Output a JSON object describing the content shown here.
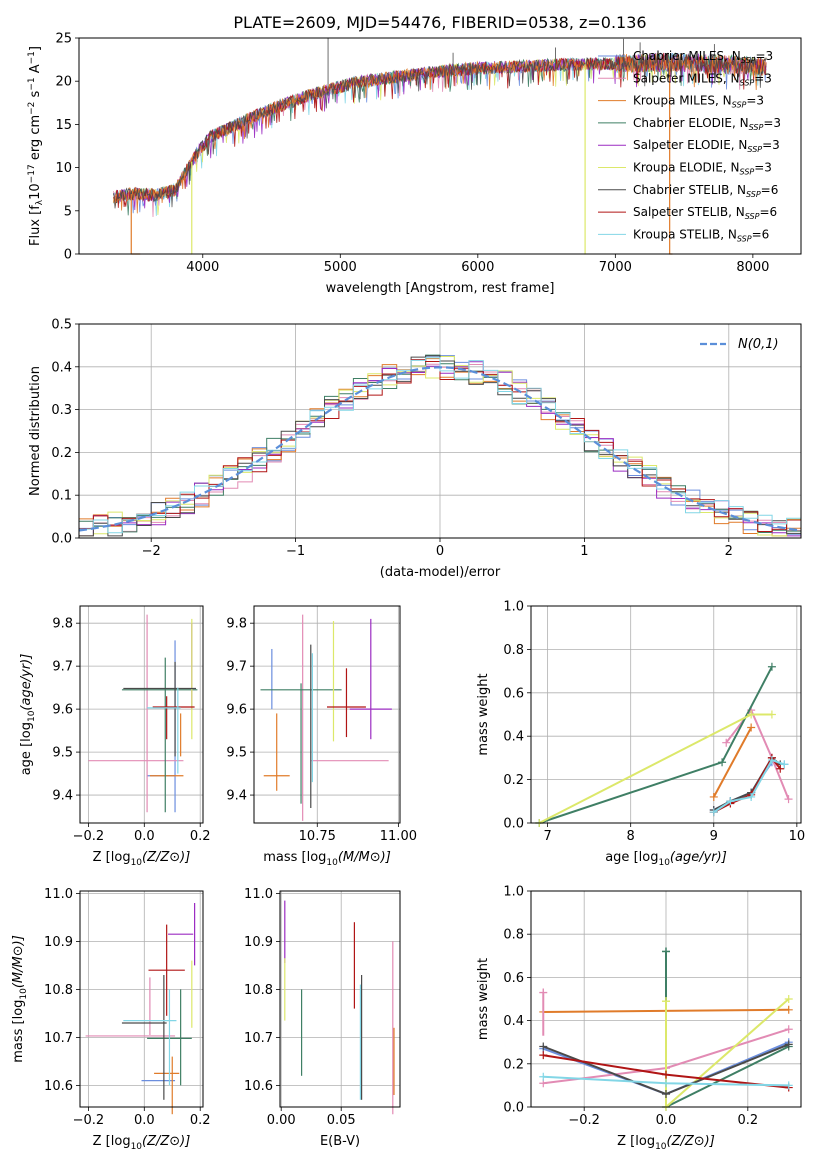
{
  "figure_title": "PLATE=2609, MJD=54476, FIBERID=0538, z=0.136",
  "series_colors": [
    "#6b8ede",
    "#e28bb4",
    "#e07b2a",
    "#3f7f65",
    "#9b2cc2",
    "#dce86a",
    "#4a4a4a",
    "#b01515",
    "#82d6e6"
  ],
  "chart_data": [
    {
      "id": "spectrum",
      "type": "line",
      "xlabel": "wavelength [Angstrom, rest frame]",
      "ylabel": "Flux [f_λ10^-17 erg cm^-2 s^-1 A^-1]",
      "xlim": [
        3100,
        8350
      ],
      "ylim": [
        0,
        25
      ],
      "xticks": [
        4000,
        5000,
        6000,
        7000,
        8000
      ],
      "yticks": [
        0,
        5,
        10,
        15,
        20,
        25
      ],
      "grid": false,
      "legend_position": "top-right",
      "legend": [
        "Chabrier MILES, N_SSP=3",
        "Salpeter MILES, N_SSP=3",
        "Kroupa MILES, N_SSP=3",
        "Chabrier ELODIE, N_SSP=3",
        "Salpeter ELODIE, N_SSP=3",
        "Kroupa ELODIE, N_SSP=3",
        "Chabrier STELIB, N_SSP=6",
        "Salpeter STELIB, N_SSP=6",
        "Kroupa STELIB, N_SSP=6"
      ],
      "continuum": {
        "x": [
          3350,
          3500,
          3650,
          3800,
          3950,
          4050,
          4250,
          4500,
          4800,
          5100,
          5400,
          5700,
          6000,
          6300,
          6600,
          6900,
          7200,
          7400,
          7600,
          7800,
          8000,
          8100
        ],
        "y": [
          6.6,
          7.0,
          6.8,
          7.4,
          11.5,
          13.5,
          15.0,
          16.8,
          18.5,
          19.8,
          20.5,
          21.1,
          21.5,
          21.7,
          21.9,
          22.0,
          22.1,
          22.2,
          22.1,
          21.9,
          21.8,
          21.7
        ]
      },
      "emission_lines": [
        {
          "x": 4911,
          "y": 25
        },
        {
          "x": 5820,
          "y": 23.3
        },
        {
          "x": 6565,
          "y": 23.9
        },
        {
          "x": 7060,
          "y": 24.9
        },
        {
          "x": 7180,
          "y": 24.5
        },
        {
          "x": 7720,
          "y": 24.3
        }
      ],
      "drop_segments": [
        {
          "x_start": 3480,
          "x_end": 3545,
          "color_index": 2
        },
        {
          "x_start": 3920,
          "x_end": 3922,
          "color_index": 5
        },
        {
          "x_start": 6780,
          "x_end": 6782,
          "color_index": 5
        },
        {
          "x_start": 7395,
          "x_end": 7415,
          "color_index": 2
        }
      ]
    },
    {
      "id": "residuals",
      "type": "step",
      "xlabel": "(data-model)/error",
      "ylabel": "Normed distribution",
      "xlim": [
        -2.5,
        2.5
      ],
      "ylim": [
        0,
        0.5
      ],
      "xticks": [
        -2,
        -1,
        0,
        1,
        2
      ],
      "yticks": [
        0,
        0.1,
        0.2,
        0.3,
        0.4,
        0.5
      ],
      "grid": true,
      "legend_position": "top-right",
      "reference": {
        "name": "N(0,1)",
        "color": "#5b8fd9"
      }
    },
    {
      "id": "age_vs_Z",
      "type": "errorbar",
      "xlabel": "Z [log10(Z/Z⊙)]",
      "ylabel": "age [log10(age/yr)]",
      "xlim": [
        -0.23,
        0.21
      ],
      "ylim": [
        9.335,
        9.84
      ],
      "xticks": [
        -0.2,
        0.0,
        0.2
      ],
      "yticks": [
        9.4,
        9.5,
        9.6,
        9.7,
        9.8
      ],
      "grid": true,
      "points": [
        {
          "x": 0.06,
          "xerr": 0.05,
          "y": 9.445,
          "yerr": 0.0,
          "color_index": 0
        },
        {
          "x": 0.11,
          "xerr": 0.0,
          "y": 9.56,
          "yerr": 0.2,
          "color_index": 0
        },
        {
          "x": -0.03,
          "xerr": 0.17,
          "y": 9.48,
          "yerr": 0.0,
          "color_index": 1
        },
        {
          "x": 0.01,
          "xerr": 0.0,
          "y": 9.59,
          "yerr": 0.23,
          "color_index": 1
        },
        {
          "x": 0.08,
          "xerr": 0.06,
          "y": 9.445,
          "yerr": 0.0,
          "color_index": 2
        },
        {
          "x": 0.13,
          "xerr": 0.0,
          "y": 9.54,
          "yerr": 0.05,
          "color_index": 2
        },
        {
          "x": 0.055,
          "xerr": 0.135,
          "y": 9.645,
          "yerr": 0.0,
          "color_index": 3
        },
        {
          "x": 0.075,
          "xerr": 0.0,
          "y": 9.54,
          "yerr": 0.18,
          "color_index": 3
        },
        {
          "x": 0.17,
          "xerr": 0.0,
          "y": 9.7,
          "yerr": 0.1,
          "color_index": 4
        },
        {
          "x": 0.17,
          "xerr": 0.0,
          "y": 9.67,
          "yerr": 0.14,
          "color_index": 5
        },
        {
          "x": 0.055,
          "xerr": 0.13,
          "y": 9.648,
          "yerr": 0.0,
          "color_index": 6
        },
        {
          "x": 0.11,
          "xerr": 0.0,
          "y": 9.6,
          "yerr": 0.11,
          "color_index": 6
        },
        {
          "x": 0.105,
          "xerr": 0.075,
          "y": 9.605,
          "yerr": 0.0,
          "color_index": 7
        },
        {
          "x": 0.08,
          "xerr": 0.0,
          "y": 9.58,
          "yerr": 0.05,
          "color_index": 7
        },
        {
          "x": 0.07,
          "xerr": 0.06,
          "y": 9.603,
          "yerr": 0.0,
          "color_index": 8
        },
        {
          "x": 0.12,
          "xerr": 0.0,
          "y": 9.55,
          "yerr": 0.1,
          "color_index": 8
        }
      ]
    },
    {
      "id": "age_vs_mass",
      "type": "errorbar",
      "xlabel": "mass [log10(M/M⊙)]",
      "ylabel": "",
      "xlim": [
        10.555,
        11.005
      ],
      "ylim": [
        9.335,
        9.84
      ],
      "xticks": [
        10.75,
        11.0
      ],
      "yticks": [
        9.4,
        9.5,
        9.6,
        9.7,
        9.8
      ],
      "grid": true,
      "points": [
        {
          "x": 10.61,
          "xerr": 0.0,
          "y": 9.67,
          "yerr": 0.07,
          "color_index": 0
        },
        {
          "x": 10.85,
          "xerr": 0.12,
          "y": 9.48,
          "yerr": 0.0,
          "color_index": 1
        },
        {
          "x": 10.705,
          "xerr": 0.0,
          "y": 9.58,
          "yerr": 0.24,
          "color_index": 1
        },
        {
          "x": 10.625,
          "xerr": 0.04,
          "y": 9.445,
          "yerr": 0.0,
          "color_index": 2
        },
        {
          "x": 10.625,
          "xerr": 0.0,
          "y": 9.5,
          "yerr": 0.09,
          "color_index": 2
        },
        {
          "x": 10.7,
          "xerr": 0.125,
          "y": 9.645,
          "yerr": 0.0,
          "color_index": 3
        },
        {
          "x": 10.7,
          "xerr": 0.0,
          "y": 9.52,
          "yerr": 0.14,
          "color_index": 3
        },
        {
          "x": 10.915,
          "xerr": 0.065,
          "y": 9.6,
          "yerr": 0.0,
          "color_index": 4
        },
        {
          "x": 10.915,
          "xerr": 0.0,
          "y": 9.67,
          "yerr": 0.14,
          "color_index": 4
        },
        {
          "x": 10.8,
          "xerr": 0.0,
          "y": 9.665,
          "yerr": 0.14,
          "color_index": 5
        },
        {
          "x": 10.73,
          "xerr": 0.0,
          "y": 9.56,
          "yerr": 0.19,
          "color_index": 6
        },
        {
          "x": 10.84,
          "xerr": 0.06,
          "y": 9.605,
          "yerr": 0.0,
          "color_index": 7
        },
        {
          "x": 10.84,
          "xerr": 0.0,
          "y": 9.615,
          "yerr": 0.08,
          "color_index": 7
        },
        {
          "x": 10.735,
          "xerr": 0.0,
          "y": 9.58,
          "yerr": 0.15,
          "color_index": 8
        }
      ]
    },
    {
      "id": "weight_vs_age",
      "type": "line",
      "xlabel": "age [log10(age/yr)]",
      "ylabel": "mass weight",
      "xlim": [
        6.8,
        10.05
      ],
      "ylim": [
        0,
        1.0
      ],
      "xticks": [
        7,
        8,
        9,
        10
      ],
      "yticks": [
        0.0,
        0.2,
        0.4,
        0.6,
        0.8,
        1.0
      ],
      "grid": true,
      "series": [
        {
          "color_index": 0,
          "x": [
            9.0,
            9.2,
            9.45,
            9.7,
            9.85
          ],
          "y": [
            0.06,
            0.1,
            0.14,
            0.28,
            0.27
          ]
        },
        {
          "color_index": 1,
          "x": [
            9.15,
            9.45,
            9.7,
            9.9
          ],
          "y": [
            0.37,
            0.52,
            0.3,
            0.11
          ]
        },
        {
          "color_index": 2,
          "x": [
            9.0,
            9.45
          ],
          "y": [
            0.12,
            0.44
          ]
        },
        {
          "color_index": 3,
          "x": [
            6.9,
            9.1,
            9.7
          ],
          "y": [
            0.0,
            0.28,
            0.72
          ]
        },
        {
          "color_index": 5,
          "x": [
            6.9,
            9.45,
            9.7
          ],
          "y": [
            0.0,
            0.5,
            0.5
          ]
        },
        {
          "color_index": 6,
          "x": [
            9.0,
            9.2,
            9.45,
            9.7,
            9.8
          ],
          "y": [
            0.06,
            0.1,
            0.14,
            0.3,
            0.27
          ]
        },
        {
          "color_index": 7,
          "x": [
            9.0,
            9.2,
            9.45,
            9.7,
            9.8
          ],
          "y": [
            0.05,
            0.09,
            0.13,
            0.3,
            0.25
          ]
        },
        {
          "color_index": 8,
          "x": [
            9.0,
            9.2,
            9.45,
            9.7,
            9.85
          ],
          "y": [
            0.05,
            0.1,
            0.12,
            0.29,
            0.27
          ]
        }
      ]
    },
    {
      "id": "mass_vs_Z",
      "type": "errorbar",
      "xlabel": "Z [log10(Z/Z⊙)]",
      "ylabel": "mass [log10(M/M⊙)]",
      "xlim": [
        -0.23,
        0.21
      ],
      "ylim": [
        10.555,
        11.005
      ],
      "xticks": [
        -0.2,
        0.0,
        0.2
      ],
      "yticks": [
        10.6,
        10.7,
        10.8,
        10.9,
        11.0
      ],
      "grid": true,
      "points": [
        {
          "x": 0.05,
          "xerr": 0.06,
          "y": 10.61,
          "yerr": 0.0,
          "color_index": 0
        },
        {
          "x": -0.05,
          "xerr": 0.16,
          "y": 10.703,
          "yerr": 0.0,
          "color_index": 1
        },
        {
          "x": 0.02,
          "xerr": 0.0,
          "y": 10.765,
          "yerr": 0.06,
          "color_index": 1
        },
        {
          "x": 0.08,
          "xerr": 0.045,
          "y": 10.625,
          "yerr": 0.0,
          "color_index": 2
        },
        {
          "x": 0.1,
          "xerr": 0.0,
          "y": 10.6,
          "yerr": 0.06,
          "color_index": 2
        },
        {
          "x": 0.09,
          "xerr": 0.08,
          "y": 10.698,
          "yerr": 0.0,
          "color_index": 3
        },
        {
          "x": 0.13,
          "xerr": 0.0,
          "y": 10.7,
          "yerr": 0.1,
          "color_index": 3
        },
        {
          "x": 0.13,
          "xerr": 0.045,
          "y": 10.915,
          "yerr": 0.0,
          "color_index": 4
        },
        {
          "x": 0.18,
          "xerr": 0.0,
          "y": 10.915,
          "yerr": 0.065,
          "color_index": 4
        },
        {
          "x": 0.17,
          "xerr": 0.0,
          "y": 10.79,
          "yerr": 0.07,
          "color_index": 5
        },
        {
          "x": 0.0,
          "xerr": 0.08,
          "y": 10.73,
          "yerr": 0.0,
          "color_index": 6
        },
        {
          "x": 0.07,
          "xerr": 0.0,
          "y": 10.7,
          "yerr": 0.13,
          "color_index": 6
        },
        {
          "x": 0.08,
          "xerr": 0.065,
          "y": 10.84,
          "yerr": 0.0,
          "color_index": 7
        },
        {
          "x": 0.08,
          "xerr": 0.0,
          "y": 10.84,
          "yerr": 0.095,
          "color_index": 7
        },
        {
          "x": 0.02,
          "xerr": 0.095,
          "y": 10.735,
          "yerr": 0.0,
          "color_index": 8
        },
        {
          "x": 0.09,
          "xerr": 0.0,
          "y": 10.7,
          "yerr": 0.1,
          "color_index": 8
        }
      ]
    },
    {
      "id": "mass_vs_EBV",
      "type": "errorbar",
      "xlabel": "E(B-V)",
      "ylabel": "",
      "xlim": [
        -0.001,
        0.099
      ],
      "ylim": [
        10.555,
        11.005
      ],
      "xticks": [
        0.0,
        0.05
      ],
      "yticks": [
        10.6,
        10.7,
        10.8,
        10.9,
        11.0
      ],
      "grid": true,
      "points": [
        {
          "x": 0.003,
          "xerr": 0.0,
          "y": 10.92,
          "yerr": 0.065,
          "color_index": 4
        },
        {
          "x": 0.003,
          "xerr": 0.0,
          "y": 10.8,
          "yerr": 0.065,
          "color_index": 5
        },
        {
          "x": 0.017,
          "xerr": 0.0,
          "y": 10.71,
          "yerr": 0.09,
          "color_index": 3
        },
        {
          "x": 0.061,
          "xerr": 0.0,
          "y": 10.85,
          "yerr": 0.09,
          "color_index": 7
        },
        {
          "x": 0.067,
          "xerr": 0.0,
          "y": 10.7,
          "yerr": 0.13,
          "color_index": 6
        },
        {
          "x": 0.066,
          "xerr": 0.0,
          "y": 10.69,
          "yerr": 0.12,
          "color_index": 8
        },
        {
          "x": 0.093,
          "xerr": 0.0,
          "y": 10.72,
          "yerr": 0.18,
          "color_index": 1
        },
        {
          "x": 0.094,
          "xerr": 0.0,
          "y": 10.65,
          "yerr": 0.07,
          "color_index": 2
        }
      ]
    },
    {
      "id": "weight_vs_Z",
      "type": "line",
      "xlabel": "Z [log10(Z/Z⊙)]",
      "ylabel": "mass weight",
      "xlim": [
        -0.33,
        0.33
      ],
      "ylim": [
        0,
        1.0
      ],
      "xticks": [
        -0.2,
        0.0,
        0.2
      ],
      "yticks": [
        0.0,
        0.2,
        0.4,
        0.6,
        0.8,
        1.0
      ],
      "grid": true,
      "series": [
        {
          "color_index": 0,
          "x": [
            -0.3,
            0.0,
            0.3
          ],
          "y": [
            0.27,
            0.06,
            0.3
          ]
        },
        {
          "color_index": 1,
          "x": [
            -0.3,
            0.0,
            0.3
          ],
          "y": [
            0.11,
            0.18,
            0.36
          ]
        },
        {
          "color_index": 2,
          "x": [
            -0.3,
            0.3
          ],
          "y": [
            0.44,
            0.45
          ]
        },
        {
          "color_index": 3,
          "x": [
            0.0,
            0.0,
            0.3
          ],
          "y": [
            0.72,
            0.0,
            0.28
          ]
        },
        {
          "color_index": 5,
          "x": [
            0.0,
            0.0,
            0.3
          ],
          "y": [
            0.49,
            0.0,
            0.5
          ]
        },
        {
          "color_index": 6,
          "x": [
            -0.3,
            0.0,
            0.3
          ],
          "y": [
            0.28,
            0.06,
            0.29
          ]
        },
        {
          "color_index": 7,
          "x": [
            -0.3,
            0.0,
            0.3
          ],
          "y": [
            0.24,
            0.15,
            0.09
          ]
        },
        {
          "color_index": 8,
          "x": [
            -0.3,
            0.0,
            0.3
          ],
          "y": [
            0.14,
            0.11,
            0.1
          ]
        }
      ],
      "highlight_points": [
        {
          "x": -0.3,
          "y": 0.53,
          "color_index": 1
        },
        {
          "x": 0.0,
          "y": 0.72,
          "color_index": 3
        },
        {
          "x": 0.0,
          "y": 0.49,
          "color_index": 5
        }
      ]
    }
  ]
}
